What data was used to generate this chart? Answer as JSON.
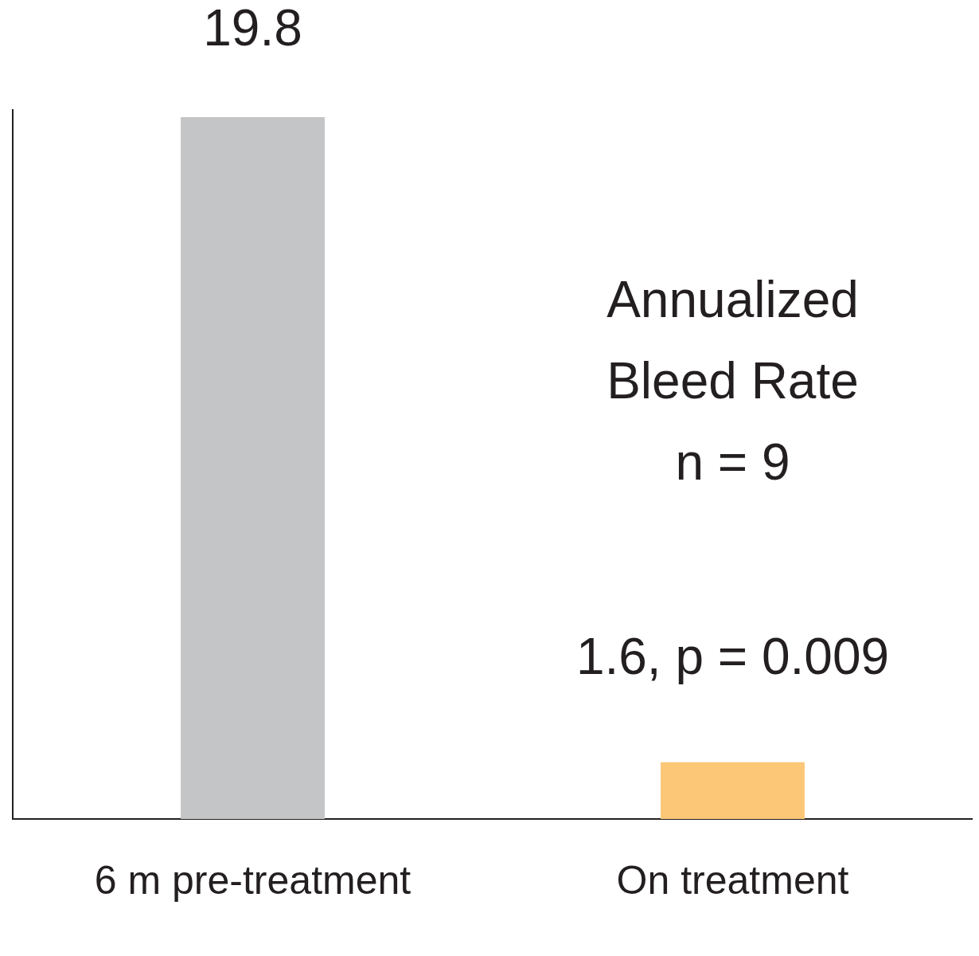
{
  "chart_data": {
    "type": "bar",
    "categories": [
      "6 m pre-treatment",
      "On treatment"
    ],
    "values": [
      19.8,
      1.6
    ],
    "colors": [
      "#c4c5c7",
      "#fcc777"
    ],
    "value_labels": [
      "19.8",
      "1.6, p = 0.009"
    ],
    "annotations": [
      "Annualized",
      "Bleed Rate",
      "n = 9"
    ],
    "grid": false,
    "legend": false,
    "tick_labels": "x"
  }
}
